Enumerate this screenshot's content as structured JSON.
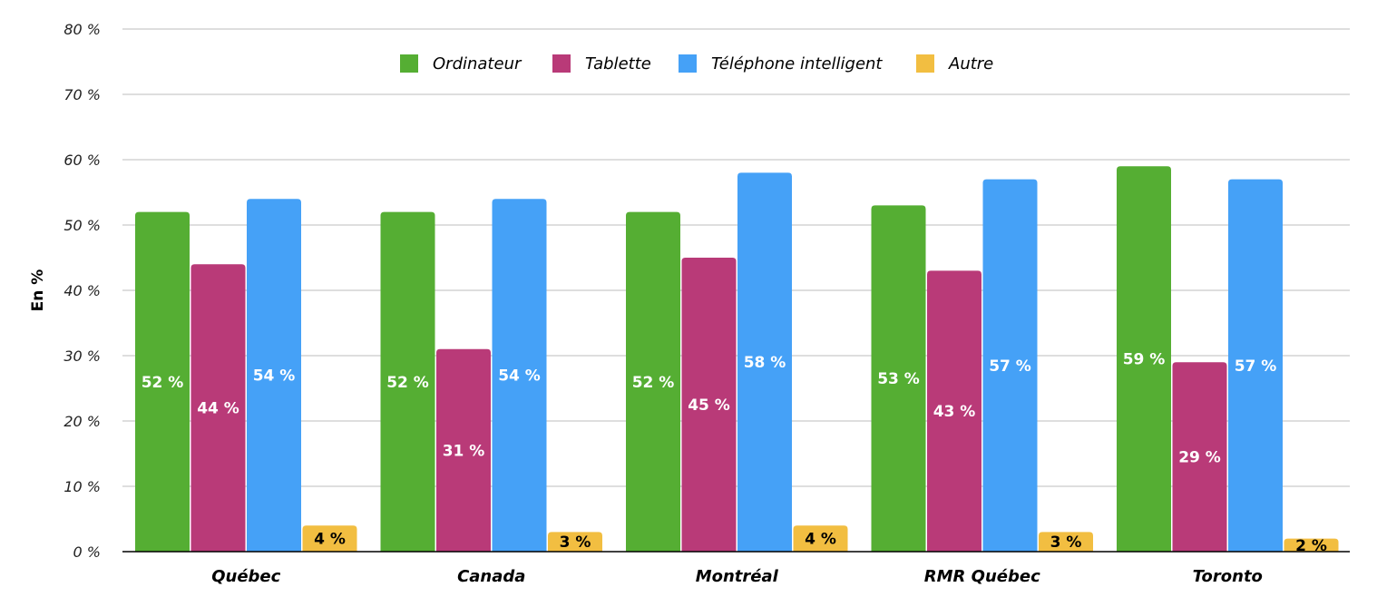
{
  "chart_data": {
    "type": "bar",
    "title": "",
    "xlabel": "",
    "ylabel": "En %",
    "ylim": [
      0,
      80
    ],
    "yticks": [
      0,
      10,
      20,
      30,
      40,
      50,
      60,
      70,
      80
    ],
    "ytick_labels": [
      "0 %",
      "10 %",
      "20 %",
      "30 %",
      "40 %",
      "50 %",
      "60 %",
      "70 %",
      "80 %"
    ],
    "grid": true,
    "legend_position": "top-center",
    "categories": [
      "Québec",
      "Canada",
      "Montréal",
      "RMR Québec",
      "Toronto"
    ],
    "series": [
      {
        "name": "Ordinateur",
        "color": "#55ae33",
        "label_color": "#ffffff",
        "values": [
          52,
          52,
          52,
          53,
          59
        ],
        "labels": [
          "52 %",
          "52 %",
          "52 %",
          "53 %",
          "59 %"
        ]
      },
      {
        "name": "Tablette",
        "color": "#b93a78",
        "label_color": "#ffffff",
        "values": [
          44,
          31,
          45,
          43,
          29
        ],
        "labels": [
          "44 %",
          "31 %",
          "45 %",
          "43 %",
          "29 %"
        ]
      },
      {
        "name": "Téléphone intelligent",
        "color": "#45a1f7",
        "label_color": "#ffffff",
        "values": [
          54,
          54,
          58,
          57,
          57
        ],
        "labels": [
          "54 %",
          "54 %",
          "58 %",
          "57 %",
          "57 %"
        ]
      },
      {
        "name": "Autre",
        "color": "#f2be41",
        "label_color": "#000000",
        "values": [
          4,
          3,
          4,
          3,
          2
        ],
        "labels": [
          "4 %",
          "3 %",
          "4 %",
          "3 %",
          "2 %"
        ]
      }
    ]
  }
}
